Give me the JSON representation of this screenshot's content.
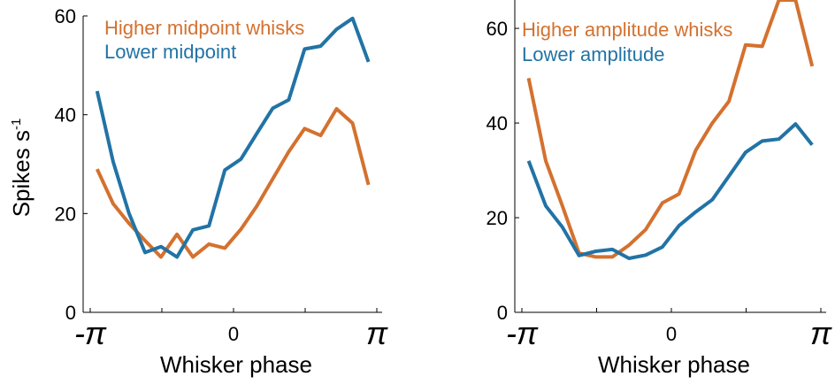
{
  "chart_data": [
    {
      "type": "line",
      "xlabel": "Whisker phase",
      "ylabel": "Spikes s",
      "ylabel_sup": "-1",
      "xlim": [
        -3.1416,
        3.1416
      ],
      "ylim": [
        0,
        60
      ],
      "yticks": [
        0,
        20,
        40,
        60
      ],
      "ytick_labels": [
        "0",
        "20",
        "40",
        "60"
      ],
      "xtick_labels": [
        "-π",
        "0",
        "π"
      ],
      "legend_placement": "top-left",
      "grid": false,
      "x": [
        -2.99,
        -2.64,
        -2.29,
        -1.94,
        -1.59,
        -1.24,
        -0.89,
        -0.54,
        -0.19,
        0.16,
        0.51,
        0.86,
        1.21,
        1.56,
        1.91,
        2.26,
        2.61,
        2.96
      ],
      "series": [
        {
          "name": "Higher midpoint whisks",
          "color": "#D4712F",
          "values": [
            29,
            22,
            18,
            14.5,
            11.2,
            15.8,
            11.2,
            13.8,
            13,
            16.8,
            21.5,
            27,
            32.5,
            37.2,
            35.8,
            41.2,
            38.3,
            25.8
          ]
        },
        {
          "name": "Lower midpoint",
          "color": "#2273A5",
          "values": [
            44.8,
            30.5,
            20,
            12.1,
            13.3,
            11.2,
            16.7,
            17.5,
            28.8,
            31,
            36.2,
            41.3,
            43,
            53.3,
            53.9,
            57.3,
            59.5,
            50.7
          ]
        }
      ]
    },
    {
      "type": "line",
      "xlabel": "Whisker phase",
      "ylabel": "",
      "xlim": [
        -3.1416,
        3.1416
      ],
      "ylim": [
        0,
        66
      ],
      "yticks": [
        0,
        20,
        40,
        60
      ],
      "ytick_labels": [
        "0",
        "20",
        "40",
        "60"
      ],
      "xtick_labels": [
        "-π",
        "0",
        "π"
      ],
      "legend_placement": "top-left",
      "grid": false,
      "x": [
        -3.0,
        -2.64,
        -2.29,
        -1.94,
        -1.59,
        -1.24,
        -0.89,
        -0.54,
        -0.19,
        0.16,
        0.51,
        0.86,
        1.21,
        1.56,
        1.91,
        2.26,
        2.61,
        2.96
      ],
      "series": [
        {
          "name": "Higher amplitude whisks",
          "color": "#D4712F",
          "values": [
            49.5,
            32,
            22.5,
            12.5,
            11.7,
            11.7,
            14.2,
            17.5,
            23.1,
            25,
            34.2,
            40,
            44.6,
            56.5,
            56.2,
            66,
            66,
            52
          ]
        },
        {
          "name": "Lower amplitude",
          "color": "#2273A5",
          "values": [
            32,
            22.5,
            18,
            12,
            12.9,
            13.3,
            11.4,
            12.1,
            13.8,
            18.3,
            21.2,
            23.8,
            28.8,
            33.8,
            36.2,
            36.6,
            39.8,
            35.4
          ]
        }
      ]
    }
  ]
}
